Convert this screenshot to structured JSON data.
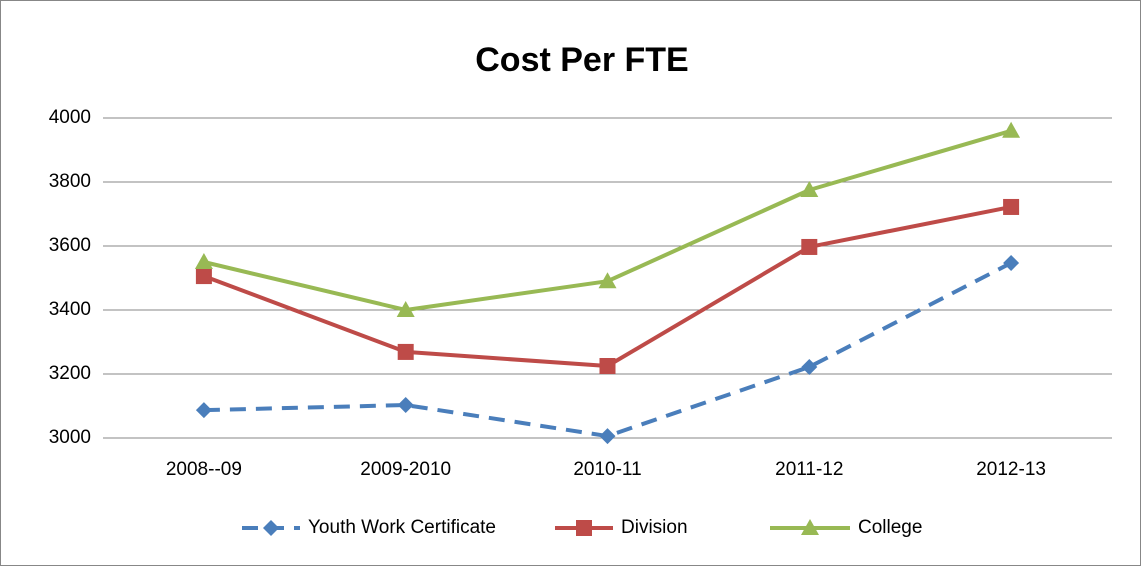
{
  "chart_data": {
    "type": "line",
    "title": "Cost Per FTE",
    "categories": [
      "2008--09",
      "2009-2010",
      "2010-11",
      "2011-12",
      "2012-13"
    ],
    "series": [
      {
        "name": "Youth Work Certificate",
        "color": "#4a7ebb",
        "marker": "diamond",
        "linestyle": "dashed",
        "values": [
          3087,
          3103,
          3006,
          3222,
          3547
        ]
      },
      {
        "name": "Division",
        "color": "#be4b48",
        "marker": "square",
        "linestyle": "solid",
        "values": [
          3506,
          3269,
          3225,
          3597,
          3722
        ]
      },
      {
        "name": "College",
        "color": "#98b954",
        "marker": "triangle",
        "linestyle": "solid",
        "values": [
          3550,
          3400,
          3490,
          3775,
          3960
        ]
      }
    ],
    "ylim": [
      3000,
      4000
    ],
    "yticks": [
      3000,
      3200,
      3400,
      3600,
      3800,
      4000
    ],
    "grid": true,
    "legend": "bottom"
  }
}
